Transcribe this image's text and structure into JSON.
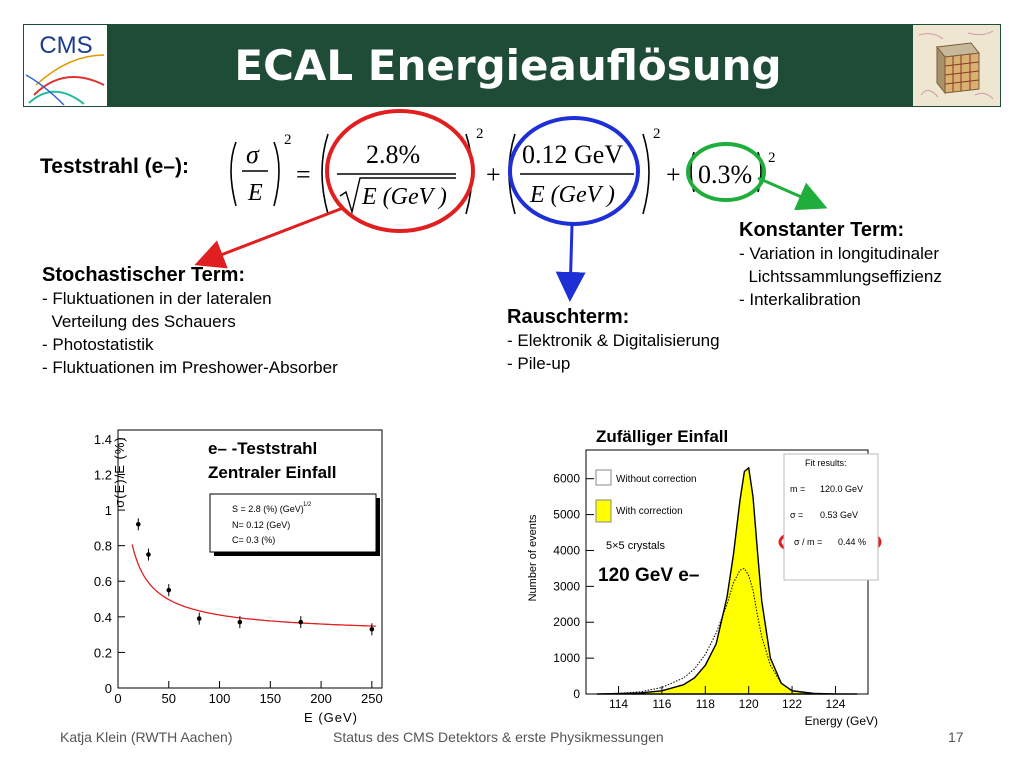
{
  "title": "ECAL Energieauflösung",
  "logo_left": {
    "text": "CMS"
  },
  "teststrahl_label": "Teststrahl (e–):",
  "formula": {
    "sigma": "σ",
    "E": "E",
    "exp": "2",
    "eq": "=",
    "stoch_num": "2.8%",
    "stoch_den": "E (GeV )",
    "plus": "+",
    "noise_num": "0.12 GeV",
    "noise_den": "E (GeV )",
    "const": "0.3%"
  },
  "colors": {
    "title_bg": "#1e4c37",
    "red": "#e02020",
    "blue": "#1f2fd6",
    "green": "#1fae3c",
    "yellow": "#ffff00"
  },
  "stochastic": {
    "title": "Stochastischer Term:",
    "items": [
      "- Fluktuationen in der lateralen",
      "  Verteilung des Schauers",
      "- Photostatistik",
      "- Fluktuationen im Preshower-Absorber"
    ]
  },
  "noise": {
    "title": "Rauschterm:",
    "items": [
      "- Elektronik & Digitalisierung",
      "- Pile-up"
    ]
  },
  "constant": {
    "title": "Konstanter Term:",
    "items": [
      "- Variation in longitudinaler",
      "  Lichtssammlungseffizienz",
      "- Interkalibration"
    ]
  },
  "left_plot": {
    "ylabel": "σ(E)/E (%)",
    "xlabel": "E (GeV)",
    "annotation_line1": "e– -Teststrahl",
    "annotation_line2": "Zentraler Einfall",
    "fit_box": [
      "S = 2.8 (%) (GeV)",
      "N= 0.12 (GeV)",
      "C= 0.3 (%)"
    ],
    "fit_box_exp": "1/2",
    "x_ticks": [
      "0",
      "50",
      "100",
      "150",
      "200",
      "250"
    ],
    "y_ticks": [
      "0",
      "0.2",
      "0.4",
      "0.6",
      "0.8",
      "1",
      "1.2",
      "1.4"
    ]
  },
  "right_plot": {
    "title": "Zufälliger Einfall",
    "ylabel": "Number of events",
    "xlabel": "Energy (GeV)",
    "legend_without": "Without correction",
    "legend_with": "With correction",
    "crystals": "5×5 crystals",
    "energy_label": "120 GeV e–",
    "fit_title": "Fit results:",
    "fit_m_label": "m =",
    "fit_m_value": "120.0 GeV",
    "fit_s_label": "σ =",
    "fit_s_value": "0.53 GeV",
    "fit_r_label": "σ / m =",
    "fit_r_value": "0.44 %",
    "x_ticks": [
      "114",
      "116",
      "118",
      "120",
      "122",
      "124"
    ],
    "y_ticks": [
      "0",
      "1000",
      "2000",
      "3000",
      "4000",
      "5000",
      "6000"
    ]
  },
  "chart_data": [
    {
      "type": "scatter",
      "xlabel": "E (GeV)",
      "ylabel": "σ(E)/E (%)",
      "xlim": [
        0,
        260
      ],
      "ylim": [
        0,
        1.45
      ],
      "series": [
        {
          "x": [
            20,
            30,
            50,
            80,
            120,
            180,
            250
          ],
          "y": [
            0.92,
            0.75,
            0.55,
            0.39,
            0.37,
            0.37,
            0.33
          ]
        }
      ],
      "fit": {
        "S": 2.8,
        "N": 0.12,
        "C": 0.3
      }
    },
    {
      "type": "area",
      "xlabel": "Energy (GeV)",
      "ylabel": "Number of events",
      "xlim": [
        112.5,
        125.5
      ],
      "ylim": [
        0,
        6800
      ],
      "series": [
        {
          "name": "Without correction",
          "x": [
            113,
            114,
            115,
            116,
            117,
            117.5,
            118,
            118.5,
            119,
            119.3,
            119.6,
            119.8,
            120,
            120.2,
            120.4,
            120.6,
            121,
            121.5,
            122,
            123,
            124,
            125
          ],
          "y": [
            0,
            20,
            60,
            180,
            450,
            700,
            1100,
            1700,
            2500,
            3100,
            3450,
            3500,
            3300,
            2900,
            2200,
            1600,
            800,
            300,
            100,
            20,
            5,
            0
          ]
        },
        {
          "name": "With correction",
          "x": [
            113,
            114,
            115,
            116,
            117,
            117.5,
            118,
            118.5,
            119,
            119.3,
            119.6,
            119.8,
            120,
            120.2,
            120.4,
            120.6,
            121,
            121.5,
            122,
            123,
            124,
            125
          ],
          "y": [
            0,
            10,
            30,
            90,
            260,
            450,
            800,
            1400,
            2700,
            3900,
            5400,
            6200,
            6300,
            5500,
            4000,
            2600,
            1000,
            300,
            90,
            15,
            3,
            0
          ]
        }
      ]
    }
  ],
  "footer": {
    "author": "Katja Klein (RWTH Aachen)",
    "center": "Status des CMS Detektors & erste Physikmessungen",
    "page": "17"
  }
}
